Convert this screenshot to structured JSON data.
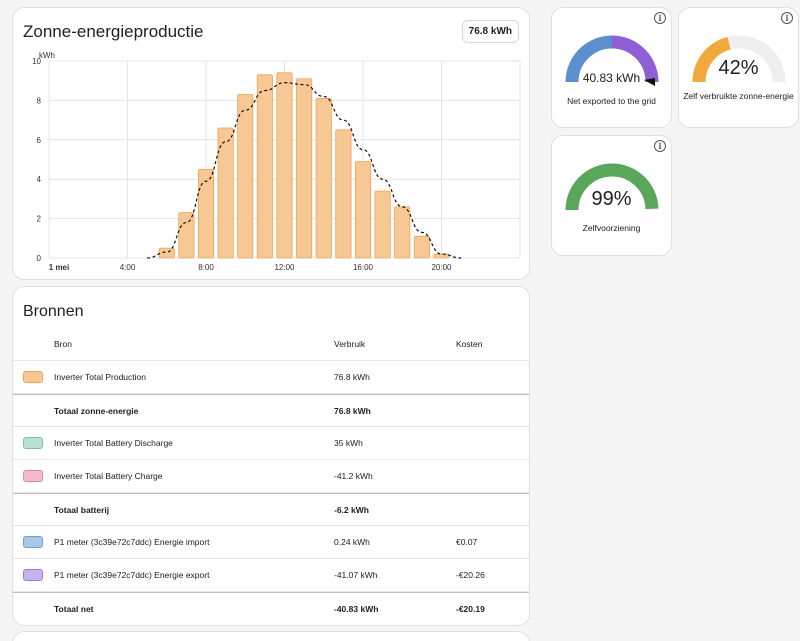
{
  "solar": {
    "title": "Zonne-energieproductie",
    "total": "76.8 kWh"
  },
  "chart_data": {
    "type": "bar",
    "ylabel": "kWh",
    "ylim": [
      0,
      10
    ],
    "y_ticks": [
      "0",
      "2",
      "4",
      "6",
      "8",
      "10"
    ],
    "x_ticks": [
      "1 mei",
      "4:00",
      "8:00",
      "12:00",
      "16:00",
      "20:00"
    ],
    "x_tick_hours": [
      0,
      4,
      8,
      12,
      16,
      20
    ],
    "xlim_hours": [
      0,
      24
    ],
    "grid": true,
    "bar_color": "#f7c894",
    "bar_border": "#e9a45a",
    "series": [
      {
        "x_hours": [
          6,
          7,
          8,
          9,
          10,
          11,
          12,
          13,
          14,
          15,
          16,
          17,
          18,
          19,
          20
        ],
        "values": [
          0.5,
          2.3,
          4.5,
          6.6,
          8.3,
          9.3,
          9.4,
          9.1,
          8.1,
          6.5,
          4.9,
          3.4,
          2.6,
          1.1,
          0.2
        ]
      },
      {
        "type": "line",
        "style": "dashed",
        "x_hours": [
          5,
          6,
          7,
          8,
          9,
          10,
          11,
          12,
          13,
          14,
          15,
          16,
          17,
          18,
          19,
          20,
          21
        ],
        "values": [
          0,
          0.3,
          1.8,
          3.9,
          5.9,
          7.5,
          8.5,
          8.9,
          8.8,
          8.2,
          7.0,
          5.5,
          4.0,
          2.6,
          1.3,
          0.2,
          0
        ]
      }
    ]
  },
  "sources": {
    "title": "Bronnen",
    "headers": {
      "source": "Bron",
      "usage": "Verbruik",
      "cost": "Kosten"
    },
    "rows": [
      {
        "name": "Inverter Total Production",
        "usage": "76.8 kWh",
        "cost": "",
        "color": "#f7c894",
        "border": "#e9a45a"
      },
      {
        "name": "Totaal zonne-energie",
        "usage": "76.8 kWh",
        "cost": ""
      },
      {
        "name": "Inverter Total Battery Discharge",
        "usage": "35 kWh",
        "cost": "",
        "color": "#b8e0d4",
        "border": "#7fbfae"
      },
      {
        "name": "Inverter Total Battery Charge",
        "usage": "-41.2 kWh",
        "cost": "",
        "color": "#f3b9cb",
        "border": "#d98aa4"
      },
      {
        "name": "Totaal batterij",
        "usage": "-6.2 kWh",
        "cost": ""
      },
      {
        "name": "P1 meter (3c39e72c7ddc) Energie import",
        "usage": "0.24 kWh",
        "cost": "€0.07",
        "color": "#a9c8e6",
        "border": "#6f9fcb"
      },
      {
        "name": "P1 meter (3c39e72c7ddc) Energie export",
        "usage": "-41.07 kWh",
        "cost": "-€20.26",
        "color": "#c8b4ec",
        "border": "#9b80d6"
      },
      {
        "name": "Totaal net",
        "usage": "-40.83 kWh",
        "cost": "-€20.19"
      }
    ]
  },
  "gauges": [
    {
      "value": "40.83 kWh",
      "label": "Net exported to the grid",
      "colors": [
        "#5b8fd0",
        "#8e5fd6"
      ],
      "split_fraction": 0.5,
      "needle_fraction": 1.0
    },
    {
      "value": "42%",
      "label": "Zelf verbruikte zonne-energie",
      "fraction": 0.42,
      "color": "#f0a93a",
      "track": "#eeeeee"
    },
    {
      "value": "99%",
      "label": "Zelfvoorziening",
      "fraction": 0.99,
      "color": "#5aa65a",
      "track": "#eeeeee"
    }
  ],
  "info_icon": "info-icon"
}
